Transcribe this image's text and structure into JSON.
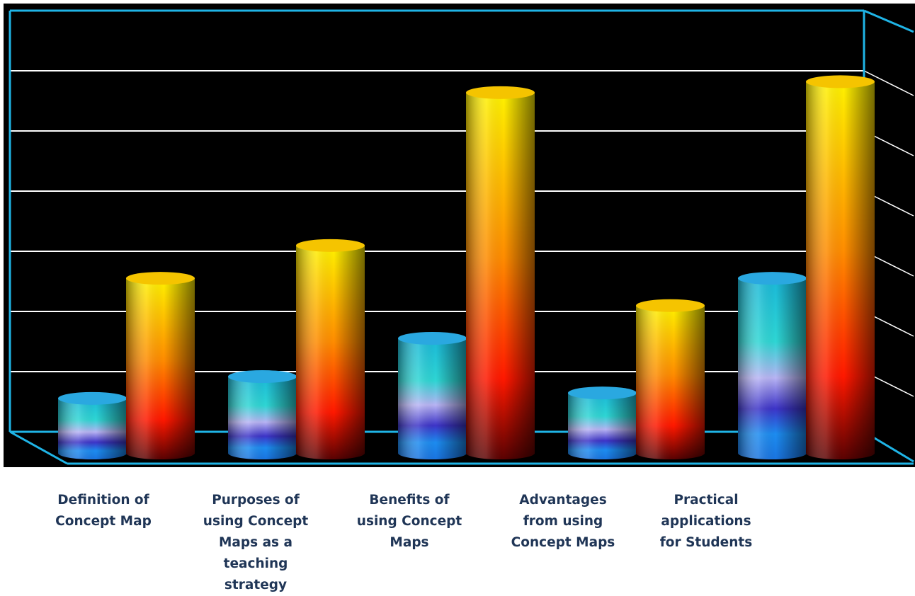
{
  "chart_data": {
    "type": "bar",
    "style": "3d-cylinder",
    "categories": [
      "Definition of\nConcept Map",
      "Purposes of\nusing Concept\nMaps as a\nteaching\nstrategy",
      "Benefits of\nusing Concept\nMaps",
      "Advantages\nfrom using\nConcept Maps",
      "Practical\napplications\nfor Students"
    ],
    "series": [
      {
        "values": [
          1.0,
          1.4,
          2.1,
          1.1,
          3.2
        ],
        "color": "#2aa8e0"
      },
      {
        "values": [
          3.2,
          3.8,
          6.6,
          2.7,
          6.8
        ],
        "color": "#f5c400"
      }
    ],
    "ylim": [
      0,
      7
    ],
    "grid": true,
    "legend": "none",
    "background": "#000000",
    "frame_color": "#1fb4e6",
    "gridline_color": "#ffffff",
    "label_color": "#1f3556"
  }
}
